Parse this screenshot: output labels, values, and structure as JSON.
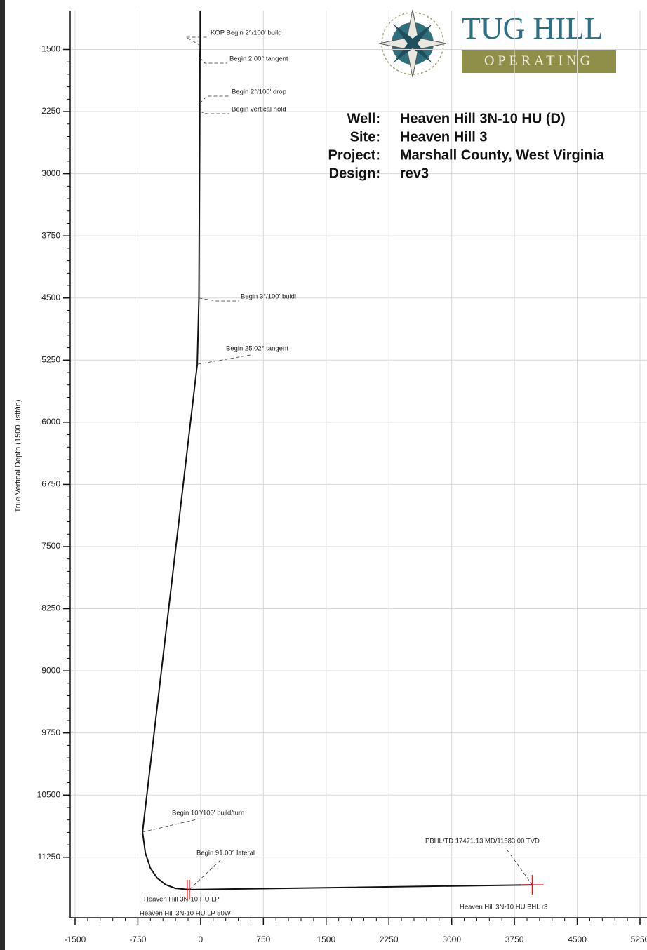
{
  "chart_data": {
    "type": "line",
    "y_label": "True Vertical Depth (1500 usft/in)",
    "logo": {
      "name": "TUG HILL",
      "tagline": "OPERATING"
    },
    "info": [
      {
        "label": "Well:",
        "value": "Heaven Hill 3N-10 HU (D)"
      },
      {
        "label": "Site:",
        "value": "Heaven Hill 3"
      },
      {
        "label": "Project:",
        "value": "Marshall County, West Virginia"
      },
      {
        "label": "Design:",
        "value": "rev3"
      }
    ],
    "x": [
      -5,
      -5,
      -8,
      -10,
      -10,
      -20,
      -40,
      -694,
      -660,
      -600,
      -520,
      -420,
      -300,
      -134,
      3963
    ],
    "values": [
      1030,
      1450,
      1600,
      2150,
      2250,
      4500,
      5300,
      10945,
      11200,
      11380,
      11500,
      11580,
      11625,
      11640,
      11583
    ],
    "color": "#111111",
    "xlim": [
      -1500,
      5250
    ],
    "ylim": [
      11980,
      1030
    ],
    "y_inverted": true,
    "xticks": [
      -1500,
      -750,
      0,
      750,
      1500,
      2250,
      3000,
      3750,
      4500,
      5250
    ],
    "yticks": [
      1500,
      2250,
      3000,
      3750,
      4500,
      5250,
      6000,
      6750,
      7500,
      8250,
      9000,
      9750,
      10500,
      11250
    ],
    "grid": true,
    "annotations": [
      {
        "text": "KOP Begin 2°/100' build",
        "x": -5,
        "y": 1450
      },
      {
        "text": "Begin 2.00° tangent",
        "x": -8,
        "y": 1600
      },
      {
        "text": "Begin 2°/100' drop",
        "x": -10,
        "y": 2150
      },
      {
        "text": "Begin vertical hold",
        "x": -10,
        "y": 2250
      },
      {
        "text": "Begin 3°/100' buidl",
        "x": -20,
        "y": 4500
      },
      {
        "text": "Begin 25.02° tangent",
        "x": -40,
        "y": 5300
      },
      {
        "text": "Begin 10°/100' build/turn",
        "x": -694,
        "y": 10945
      },
      {
        "text": "Begin 91.00° lateral",
        "x": -134,
        "y": 11640
      },
      {
        "text": "PBHL/TD 17471.13 MD/11583.00 TVD",
        "x": 3963,
        "y": 11583
      }
    ],
    "targets": [
      {
        "text": "Heaven Hill 3N-10 HU LP",
        "x": -134,
        "y": 11640,
        "color": "#d62020"
      },
      {
        "text": "Heaven Hill 3N-10 HU LP 50W",
        "x": -160,
        "y": 11640,
        "color": "#d62020"
      },
      {
        "text": "Heaven Hill 3N-10 HU BHL r3",
        "x": 3963,
        "y": 11583,
        "color": "#d62020"
      }
    ]
  }
}
